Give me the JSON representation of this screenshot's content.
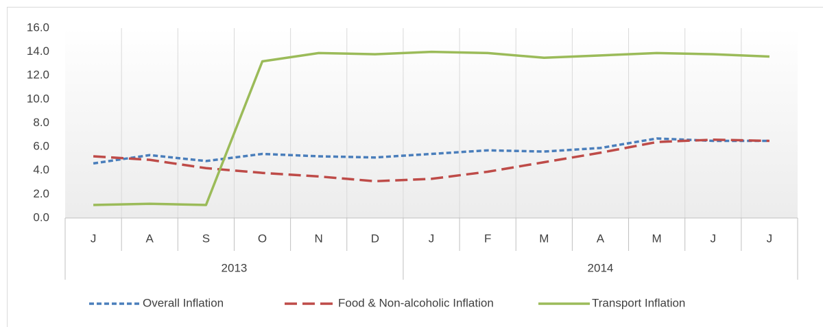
{
  "chart_data": {
    "type": "line",
    "categories": [
      "J",
      "A",
      "S",
      "O",
      "N",
      "D",
      "J",
      "F",
      "M",
      "A",
      "M",
      "J",
      "J"
    ],
    "groups": [
      {
        "label": "2013",
        "size": 6
      },
      {
        "label": "2014",
        "size": 7
      }
    ],
    "series": [
      {
        "name": "Overall Inflation",
        "color": "#4a7ebb",
        "style": "short-dash",
        "values": [
          4.6,
          5.3,
          4.8,
          5.4,
          5.2,
          5.1,
          5.4,
          5.7,
          5.6,
          5.9,
          6.7,
          6.5,
          6.5
        ]
      },
      {
        "name": "Food & Non-alcoholic Inflation",
        "color": "#be4b48",
        "style": "long-dash",
        "values": [
          5.2,
          4.9,
          4.2,
          3.8,
          3.5,
          3.1,
          3.3,
          3.9,
          4.7,
          5.5,
          6.4,
          6.6,
          6.5
        ]
      },
      {
        "name": "Transport Inflation",
        "color": "#9bbb59",
        "style": "solid",
        "values": [
          1.1,
          1.2,
          1.1,
          13.2,
          13.9,
          13.8,
          14.0,
          13.9,
          13.5,
          13.7,
          13.9,
          13.8,
          13.6
        ]
      }
    ],
    "ylim": [
      0,
      16
    ],
    "yticks": [
      {
        "value": 0,
        "label": "0.0"
      },
      {
        "value": 2,
        "label": "2.0"
      },
      {
        "value": 4,
        "label": "4.0"
      },
      {
        "value": 6,
        "label": "6.0"
      },
      {
        "value": 8,
        "label": "8.0"
      },
      {
        "value": 10,
        "label": "10.0"
      },
      {
        "value": 12,
        "label": "12.0"
      },
      {
        "value": 14,
        "label": "14.0"
      },
      {
        "value": 16,
        "label": "16.0"
      }
    ],
    "legend": "bottom"
  }
}
